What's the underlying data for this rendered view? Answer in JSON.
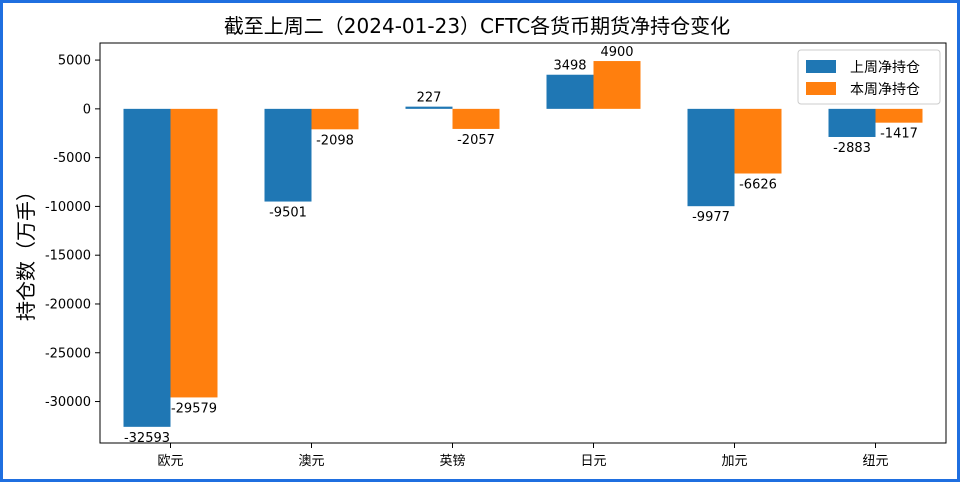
{
  "chart_data": {
    "type": "bar",
    "title": "截至上周二（2024-01-23）CFTC各货币期货净持仓变化",
    "ylabel": "持仓数（万手）",
    "xlabel": "",
    "categories": [
      "欧元",
      "澳元",
      "英镑",
      "日元",
      "加元",
      "纽元"
    ],
    "series": [
      {
        "name": "上周净持仓",
        "color": "#1f77b4",
        "values": [
          -32593,
          -9501,
          227,
          3498,
          -9977,
          -2883
        ]
      },
      {
        "name": "本周净持仓",
        "color": "#ff7f0e",
        "values": [
          -29579,
          -2098,
          -2057,
          4900,
          -6626,
          -1417
        ]
      }
    ],
    "ylim": [
      -34250,
      6750
    ],
    "yticks": [
      5000,
      0,
      -5000,
      -10000,
      -15000,
      -20000,
      -25000,
      -30000
    ],
    "legend_position": "top-right",
    "grid": false
  }
}
